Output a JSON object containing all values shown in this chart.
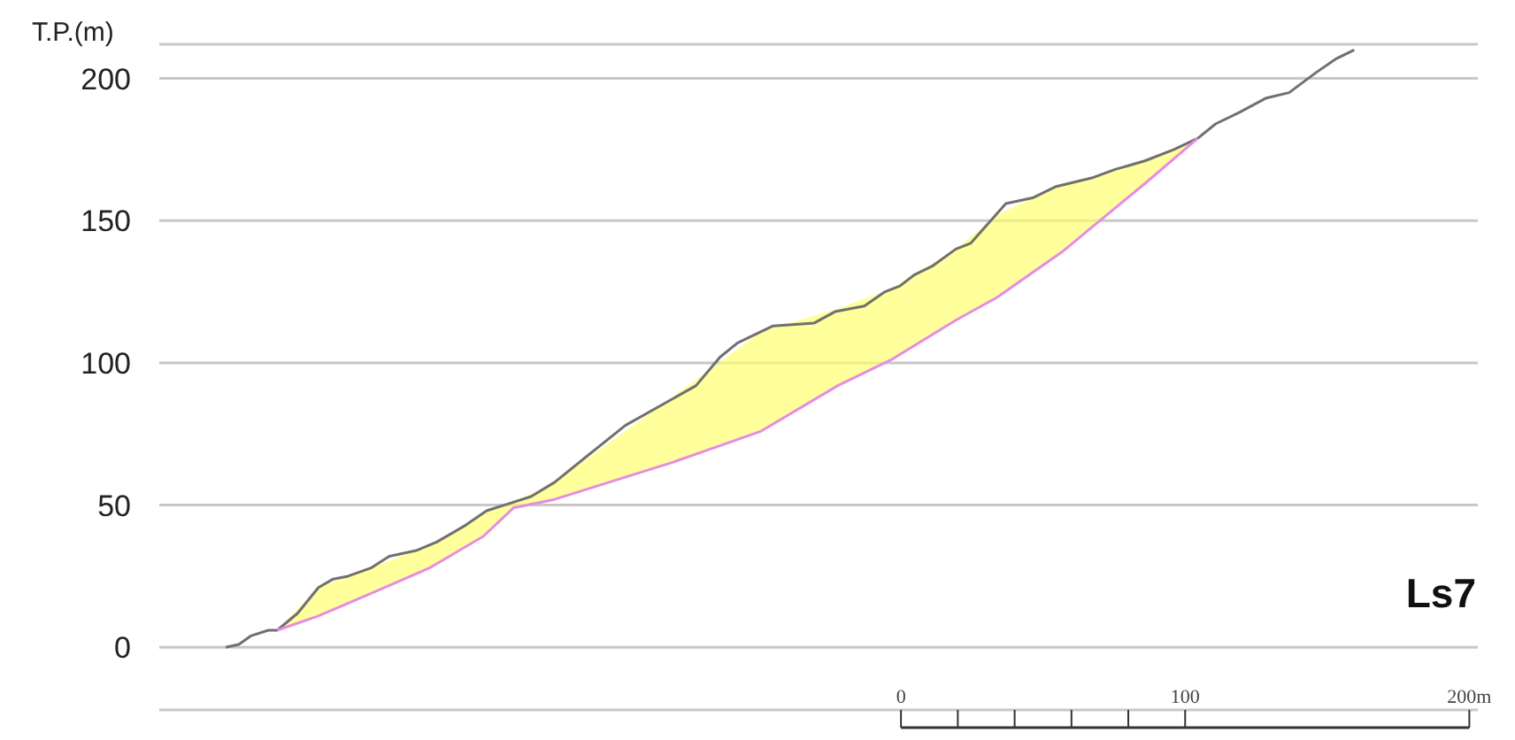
{
  "chart_data": {
    "type": "line",
    "ylabel": "T.P.(m)",
    "annotations": [
      "Ls7"
    ],
    "grid": "y",
    "legend": false,
    "marker": "none",
    "line_style": "solid",
    "xlim": [
      -261,
      203
    ],
    "xticks": [
      {
        "value": 0,
        "label": "0"
      },
      {
        "value": 20,
        "label": null
      },
      {
        "value": 40,
        "label": null
      },
      {
        "value": 60,
        "label": null
      },
      {
        "value": 80,
        "label": null
      },
      {
        "value": 100,
        "label": "100"
      },
      {
        "value": 200,
        "label": "200m"
      }
    ],
    "ylim": [
      -22,
      212
    ],
    "yticks": [
      0,
      50,
      100,
      150,
      200
    ],
    "series": [
      {
        "color": "#707070",
        "x": [
          -237.6,
          -233,
          -228.8,
          -222.6,
          -219.5,
          -212.3,
          -205,
          -199.8,
          -194.6,
          -186.3,
          -180.1,
          -170.7,
          -163.4,
          -153.1,
          -145.8,
          -139.6,
          -130.2,
          -121.9,
          -109.5,
          -97,
          -72.1,
          -63.7,
          -57.5,
          -45,
          -30.5,
          -23.2,
          -12.9,
          -5.6,
          -0.4,
          4.8,
          11,
          19.3,
          24.5,
          36.9,
          46.3,
          54.6,
          67.1,
          75.4,
          85.8,
          96.1,
          104.5,
          110.7,
          119,
          128.3,
          136.6,
          146,
          153.3,
          159.5
        ],
        "values": [
          0,
          1,
          4,
          6,
          6,
          12,
          21,
          24,
          25,
          28,
          32,
          34,
          37,
          43,
          48,
          50,
          53,
          58,
          68,
          78,
          92,
          102,
          107,
          113,
          114,
          118,
          120,
          125,
          127,
          131,
          134,
          140,
          142,
          156,
          158,
          162,
          165,
          168,
          171,
          175,
          179,
          184,
          188,
          193,
          195,
          202,
          207,
          210
        ]
      },
      {
        "color": "#e58ce5",
        "x": [
          -219.5,
          -205,
          -186.3,
          -165.7,
          -147,
          -136.4,
          -121.9,
          -80.4,
          -49.2,
          -22.2,
          -3.6,
          19.3,
          33.8,
          56.7,
          71.2,
          85.8,
          104.5
        ],
        "values": [
          6,
          11,
          19,
          28,
          39,
          49,
          52,
          65,
          76,
          92,
          101,
          115,
          123,
          139,
          151,
          163,
          179
        ],
        "lower": [
          6,
          11,
          19,
          28,
          39,
          49,
          52,
          65,
          76,
          92,
          101,
          115,
          123,
          139,
          151,
          163,
          179
        ],
        "upper": [
          6,
          21,
          28,
          36,
          47,
          51,
          58,
          88,
          111,
          119,
          126,
          140,
          152,
          163,
          166,
          171,
          179
        ]
      }
    ]
  }
}
